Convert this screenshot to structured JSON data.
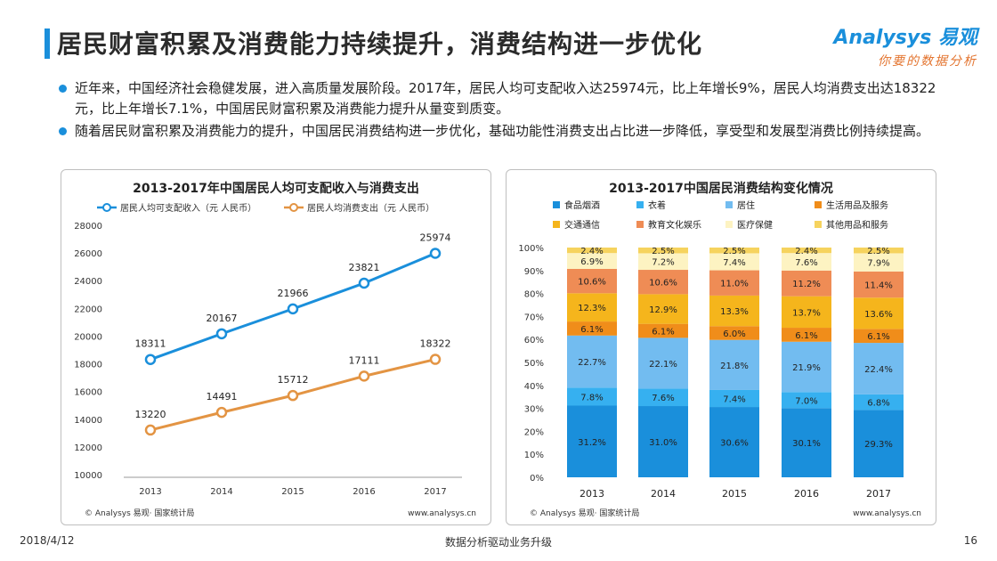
{
  "header": {
    "title": "居民财富积累及消费能力持续提升，消费结构进一步优化",
    "logo_line1": "Analysys 易观",
    "logo_line2": "你要的数据分析"
  },
  "bullets": [
    "近年来，中国经济社会稳健发展，进入高质量发展阶段。2017年，居民人均可支配收入达25974元，比上年增长9%，居民人均消费支出达18322元，比上年增长7.1%，中国居民财富积累及消费能力提升从量变到质变。",
    "随着居民财富积累及消费能力的提升，中国居民消费结构进一步优化，基础功能性消费支出占比进一步降低，享受型和发展型消费比例持续提高。"
  ],
  "footer": {
    "date": "2018/4/12",
    "center": "数据分析驱动业务升级",
    "page": "16"
  },
  "chart_data": [
    {
      "type": "line",
      "title": "2013-2017年中国居民人均可支配收入与消费支出",
      "x": [
        "2013",
        "2014",
        "2015",
        "2016",
        "2017"
      ],
      "series": [
        {
          "name": "居民人均可支配收入（元 人民币）",
          "values": [
            18311,
            20167,
            21966,
            23821,
            25974
          ],
          "color": "#1a8fdb"
        },
        {
          "name": "居民人均消费支出（元 人民币）",
          "values": [
            13220,
            14491,
            15712,
            17111,
            18322
          ],
          "color": "#e39443"
        }
      ],
      "ylim": [
        10000,
        28000
      ],
      "yticks": [
        "10000",
        "12000",
        "14000",
        "16000",
        "18000",
        "20000",
        "22000",
        "24000",
        "26000",
        "28000"
      ],
      "legend": "top",
      "source": "© Analysys 易观· 国家统计局",
      "website": "www.analysys.cn"
    },
    {
      "type": "bar",
      "stacked": true,
      "title": "2013-2017中国居民消费结构变化情况",
      "categories": [
        "2013",
        "2014",
        "2015",
        "2016",
        "2017"
      ],
      "series": [
        {
          "name": "食品烟酒",
          "values": [
            31.2,
            31.0,
            30.6,
            30.1,
            29.3
          ],
          "labels": [
            "31.2%",
            "31.0%",
            "30.6%",
            "30.1%",
            "29.3%"
          ],
          "color": "#1a8fdb"
        },
        {
          "name": "衣着",
          "values": [
            7.8,
            7.6,
            7.4,
            7.0,
            6.8
          ],
          "labels": [
            "7.8%",
            "7.6%",
            "7.4%",
            "7.0%",
            "6.8%"
          ],
          "color": "#36b0f0"
        },
        {
          "name": "居住",
          "values": [
            22.7,
            22.1,
            21.8,
            21.9,
            22.4
          ],
          "labels": [
            "22.7%",
            "22.1%",
            "21.8%",
            "21.9%",
            "22.4%"
          ],
          "color": "#72bcf0"
        },
        {
          "name": "生活用品及服务",
          "values": [
            6.1,
            6.1,
            6.0,
            6.1,
            6.1
          ],
          "labels": [
            "6.1%",
            "6.1%",
            "6.0%",
            "6.1%",
            "6.1%"
          ],
          "color": "#f08d1a"
        },
        {
          "name": "交通通信",
          "values": [
            12.3,
            12.9,
            13.3,
            13.7,
            13.6
          ],
          "labels": [
            "12.3%",
            "12.9%",
            "13.3%",
            "13.7%",
            "13.6%"
          ],
          "color": "#f5b51c"
        },
        {
          "name": "教育文化娱乐",
          "values": [
            10.6,
            10.6,
            11.0,
            11.2,
            11.4
          ],
          "labels": [
            "10.6%",
            "10.6%",
            "11.0%",
            "11.2%",
            "11.4%"
          ],
          "color": "#ef8c55"
        },
        {
          "name": "医疗保健",
          "values": [
            6.9,
            7.2,
            7.4,
            7.6,
            7.9
          ],
          "labels": [
            "6.9%",
            "7.2%",
            "7.4%",
            "7.6%",
            "7.9%"
          ],
          "color": "#fdf3c2"
        },
        {
          "name": "其他用品和服务",
          "values": [
            2.4,
            2.5,
            2.5,
            2.4,
            2.5
          ],
          "labels": [
            "2.4%",
            "2.5%",
            "2.5%",
            "2.4%",
            "2.5%"
          ],
          "color": "#f6d35e"
        }
      ],
      "ylim": [
        0,
        100
      ],
      "yticks": [
        "0%",
        "10%",
        "20%",
        "30%",
        "40%",
        "50%",
        "60%",
        "70%",
        "80%",
        "90%",
        "100%"
      ],
      "legend": "top",
      "source": "© Analysys 易观· 国家统计局",
      "website": "www.analysys.cn"
    }
  ]
}
